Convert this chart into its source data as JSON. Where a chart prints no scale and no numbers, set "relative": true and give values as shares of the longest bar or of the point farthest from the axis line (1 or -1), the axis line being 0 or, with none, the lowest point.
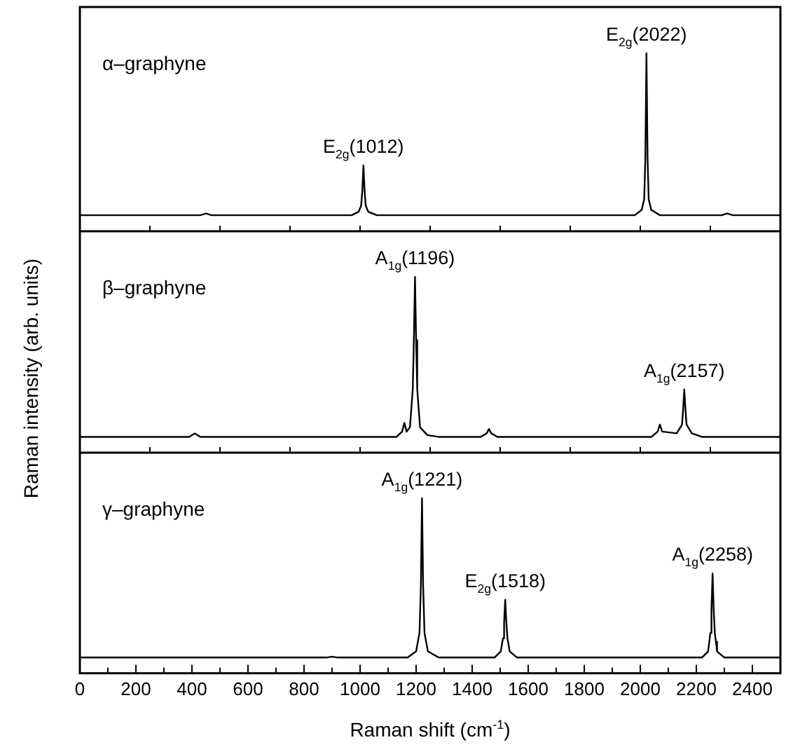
{
  "chart_data": [
    {
      "type": "line",
      "relative": true,
      "grid": false,
      "tick_labels": false,
      "xlim": [
        0,
        2500
      ],
      "xticks": [
        {
          "value": 250,
          "label": null
        },
        {
          "value": 500,
          "label": null
        },
        {
          "value": 750,
          "label": null
        },
        {
          "value": 1000,
          "label": null
        },
        {
          "value": 1250,
          "label": null
        },
        {
          "value": 1500,
          "label": null
        },
        {
          "value": 1750,
          "label": null
        },
        {
          "value": 2000,
          "label": null
        },
        {
          "value": 2250,
          "label": null
        }
      ],
      "annotations": [
        "α–graphyne",
        {
          "text": "E$_{2g}$(1012)",
          "x": 1012,
          "y": 0.37
        },
        {
          "text": "E$_{2g}$(2022)",
          "x": 2022,
          "y": 1
        }
      ],
      "series": [
        {
          "color": "#000000",
          "x": [
            0,
            430,
            450,
            470,
            970,
            995,
            1004,
            1008,
            1012,
            1016,
            1020,
            1029,
            1060,
            1980,
            2005,
            2014,
            2018,
            2022,
            2026,
            2030,
            2039,
            2070,
            2290,
            2310,
            2330,
            2500
          ],
          "values": [
            0.09,
            0.09,
            0.1,
            0.09,
            0.09,
            0.11,
            0.145,
            0.23,
            0.37,
            0.23,
            0.145,
            0.11,
            0.09,
            0.09,
            0.12,
            0.18,
            0.41,
            1,
            0.41,
            0.18,
            0.12,
            0.09,
            0.09,
            0.1,
            0.09,
            0.09
          ]
        }
      ]
    },
    {
      "type": "line",
      "relative": true,
      "grid": false,
      "tick_labels": false,
      "xlim": [
        0,
        2500
      ],
      "ylabel": "Raman intensity (arb. units)",
      "xticks": [
        {
          "value": 250,
          "label": null
        },
        {
          "value": 500,
          "label": null
        },
        {
          "value": 750,
          "label": null
        },
        {
          "value": 1000,
          "label": null
        },
        {
          "value": 1250,
          "label": null
        },
        {
          "value": 1500,
          "label": null
        },
        {
          "value": 1750,
          "label": null
        },
        {
          "value": 2000,
          "label": null
        },
        {
          "value": 2250,
          "label": null
        }
      ],
      "annotations": [
        "β–graphyne",
        {
          "text": "A$_{1g}$(1196)",
          "x": 1196,
          "y": 1
        },
        {
          "text": "A$_{1g}$(2157)",
          "x": 2157,
          "y": 0.36
        }
      ],
      "series": [
        {
          "color": "#000000",
          "x": [
            0,
            390,
            410,
            430,
            1130,
            1150,
            1158,
            1166,
            1178,
            1188,
            1192,
            1196,
            1200,
            1204,
            1214,
            1240,
            1280,
            1430,
            1452,
            1460,
            1468,
            1490,
            2040,
            2062,
            2070,
            2078,
            2130,
            2149,
            2153,
            2157,
            2161,
            2165,
            2184,
            2220,
            2500
          ],
          "values": [
            0.09,
            0.09,
            0.11,
            0.09,
            0.09,
            0.12,
            0.17,
            0.12,
            0.145,
            0.36,
            0.64,
            1,
            0.64,
            0.36,
            0.145,
            0.1,
            0.09,
            0.09,
            0.11,
            0.135,
            0.11,
            0.09,
            0.09,
            0.12,
            0.16,
            0.12,
            0.11,
            0.16,
            0.25,
            0.36,
            0.25,
            0.16,
            0.11,
            0.09,
            0.09
          ]
        }
      ]
    },
    {
      "type": "line",
      "relative": true,
      "grid": false,
      "xlim": [
        0,
        2500
      ],
      "xlabel": "Raman shift (cm$^{-1}$)",
      "xticks": [
        0,
        {
          "value": 100,
          "label": null
        },
        200,
        {
          "value": 300,
          "label": null
        },
        400,
        {
          "value": 500,
          "label": null
        },
        600,
        {
          "value": 700,
          "label": null
        },
        800,
        {
          "value": 900,
          "label": null
        },
        1000,
        {
          "value": 1100,
          "label": null
        },
        1200,
        {
          "value": 1300,
          "label": null
        },
        1400,
        {
          "value": 1500,
          "label": null
        },
        1600,
        {
          "value": 1700,
          "label": null
        },
        1800,
        {
          "value": 1900,
          "label": null
        },
        2000,
        {
          "value": 2100,
          "label": null
        },
        2200,
        {
          "value": 2300,
          "label": null
        },
        2400
      ],
      "annotations": [
        "γ–graphyne",
        {
          "text": "A$_{1g}$(1221)",
          "x": 1221,
          "y": 1
        },
        {
          "text": "E$_{2g}$(1518)",
          "x": 1518,
          "y": 0.42
        },
        {
          "text": "A$_{1g}$(2258)",
          "x": 2258,
          "y": 0.57
        }
      ],
      "series": [
        {
          "color": "#000000",
          "x": [
            0,
            880,
            900,
            920,
            1170,
            1200,
            1212,
            1217,
            1221,
            1225,
            1230,
            1242,
            1280,
            1480,
            1502,
            1510,
            1514,
            1518,
            1522,
            1526,
            1534,
            1560,
            2220,
            2242,
            2250,
            2254,
            2258,
            2262,
            2266,
            2270,
            2274,
            2300,
            2500
          ],
          "values": [
            0.09,
            0.09,
            0.095,
            0.09,
            0.09,
            0.125,
            0.23,
            0.5,
            1,
            0.5,
            0.23,
            0.125,
            0.09,
            0.09,
            0.125,
            0.2,
            0.29,
            0.42,
            0.29,
            0.2,
            0.125,
            0.09,
            0.09,
            0.125,
            0.23,
            0.36,
            0.57,
            0.36,
            0.23,
            0.18,
            0.125,
            0.09,
            0.09
          ]
        }
      ]
    }
  ]
}
